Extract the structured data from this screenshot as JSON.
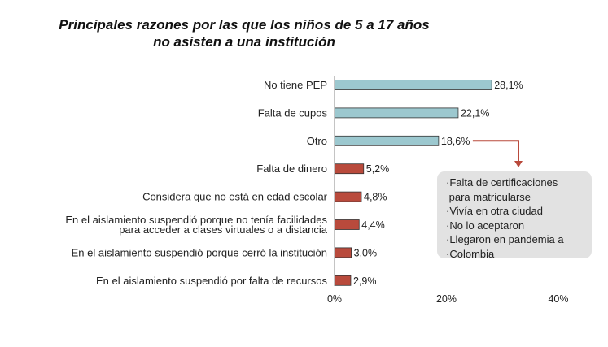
{
  "chart_data": {
    "type": "bar",
    "orientation": "horizontal",
    "title": "Principales razones por las que los niños de 5 a 17 años no asisten a una institución",
    "categories": [
      "No tiene PEP",
      "Falta de cupos",
      "Otro",
      "Falta de dinero",
      "Considera que no está en edad escolar",
      "En el aislamiento suspendió porque no tenía facilidades para acceder a clases virtuales o a distancia",
      "En el aislamiento suspendió porque cerró la institución",
      "En el aislamiento suspendió por falta de recursos"
    ],
    "category_lines": [
      [
        "No tiene PEP"
      ],
      [
        "Falta de cupos"
      ],
      [
        "Otro"
      ],
      [
        "Falta de dinero"
      ],
      [
        "Considera que no está en edad escolar"
      ],
      [
        "En el aislamiento suspendió porque no tenía facilidades",
        "para acceder a clases virtuales o a distancia"
      ],
      [
        "En el aislamiento suspendió porque cerró la institución"
      ],
      [
        "En el aislamiento suspendió por falta de recursos"
      ]
    ],
    "values": [
      28.1,
      22.1,
      18.6,
      5.2,
      4.8,
      4.4,
      3.0,
      2.9
    ],
    "data_labels": [
      "28,1%",
      "22,1%",
      "18,6%",
      "5,2%",
      "4,8%",
      "4,4%",
      "3,0%",
      "2,9%"
    ],
    "bar_colors": [
      "#9cc8cf",
      "#9cc8cf",
      "#9cc8cf",
      "#b94a3c",
      "#b94a3c",
      "#b94a3c",
      "#b94a3c",
      "#b94a3c"
    ],
    "xlim": [
      0,
      40
    ],
    "x_ticks": [
      0,
      20,
      40
    ],
    "x_tick_labels": [
      "0%",
      "20%",
      "40%"
    ],
    "grid": false,
    "annotation": {
      "points_to": "Otro",
      "arrow_color": "#b94a3c",
      "box_color": "#e2e2e2",
      "items": [
        "·Falta de certificaciones",
        " para matricularse",
        "·Vivía en otra ciudad",
        "·No lo aceptaron",
        "·Llegaron en pandemia a",
        "·Colombia"
      ]
    }
  }
}
